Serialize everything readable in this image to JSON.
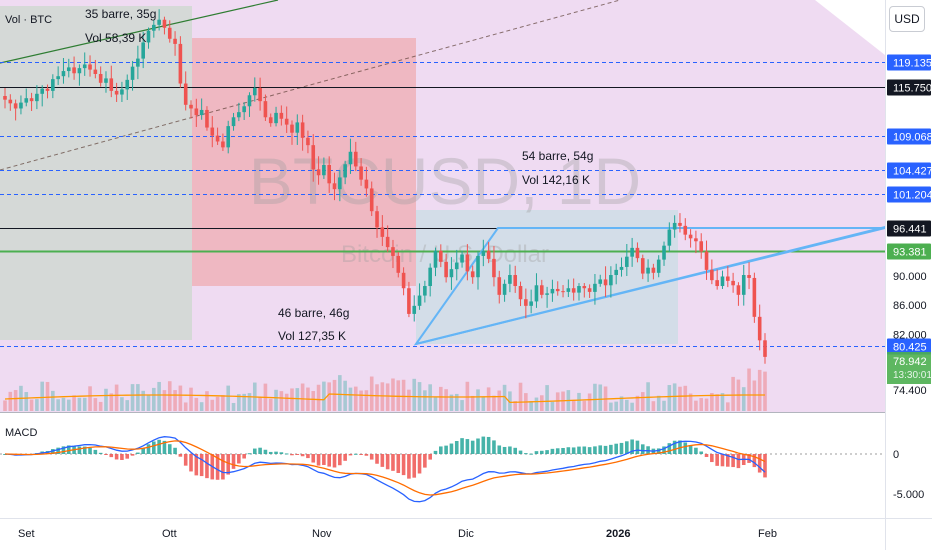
{
  "symbol": {
    "watermark": "BTCUSD, 1D",
    "subtitle": "Bitcoin / U.S. Dollar"
  },
  "indicators": {
    "volume_label": "Vol · BTC",
    "macd_label": "MACD"
  },
  "currency_button": "USD",
  "annotations": {
    "range1_bars": "35 barre, 35g",
    "range1_vol": "Vol 58,39 K",
    "range2_bars": "46 barre, 46g",
    "range2_vol": "Vol 127,35 K",
    "range3_bars": "54 barre, 54g",
    "range3_vol": "Vol 142,16 K"
  },
  "price_axis": {
    "ticks": [
      {
        "value": 90000,
        "text": "90.000"
      },
      {
        "value": 86000,
        "text": "86.000"
      },
      {
        "value": 82000,
        "text": "82.000"
      },
      {
        "value": 74400,
        "text": "74.400"
      }
    ],
    "levels": [
      {
        "value": 119135,
        "text": "119.135",
        "kind": "dashed"
      },
      {
        "value": 115750,
        "text": "115.750",
        "kind": "black"
      },
      {
        "value": 109068,
        "text": "109.068",
        "kind": "dashed"
      },
      {
        "value": 104427,
        "text": "104.427",
        "kind": "dashed"
      },
      {
        "value": 101204,
        "text": "101.204",
        "kind": "dashed"
      },
      {
        "value": 96441,
        "text": "96.441",
        "kind": "black"
      },
      {
        "value": 93381,
        "text": "93.381",
        "kind": "green"
      },
      {
        "value": 80425,
        "text": "80.425",
        "kind": "dashed"
      }
    ],
    "last_price": "78.942",
    "countdown": "13:30:01"
  },
  "macd_axis": [
    {
      "value": 0,
      "text": "0"
    },
    {
      "value": -5000,
      "text": "-5.000"
    }
  ],
  "time_axis": [
    {
      "text": "Set",
      "bold": false
    },
    {
      "text": "Ott",
      "bold": false
    },
    {
      "text": "Nov",
      "bold": false
    },
    {
      "text": "Dic",
      "bold": false
    },
    {
      "text": "2026",
      "bold": true
    },
    {
      "text": "Feb",
      "bold": false
    }
  ],
  "colors": {
    "up": "#26a69a",
    "down": "#ef5350",
    "level_blue": "#2962ff",
    "level_green": "#4caf50",
    "macd_line": "#2962ff",
    "signal_line": "#ff6d00",
    "range_green": "#a5d6a7",
    "range_red": "#ef9a9a",
    "range_blue": "#90caf9",
    "pink_bg": "#e1bee7"
  },
  "chart_data": {
    "type": "candlestick",
    "closes": [
      114000,
      113500,
      112800,
      113600,
      114200,
      113800,
      114800,
      115500,
      115200,
      116800,
      117200,
      117900,
      118400,
      117600,
      118300,
      118800,
      118100,
      117500,
      116300,
      116900,
      115200,
      114700,
      115400,
      116700,
      118500,
      119600,
      121800,
      123400,
      124200,
      124900,
      123800,
      122300,
      121600,
      116200,
      113300,
      112800,
      111900,
      112600,
      110200,
      109100,
      108300,
      107500,
      110400,
      111600,
      112300,
      113100,
      114600,
      115600,
      113800,
      111600,
      110800,
      112200,
      111400,
      110600,
      109500,
      110900,
      108800,
      107800,
      104500,
      103700,
      105100,
      102600,
      101800,
      103400,
      105200,
      106900,
      104900,
      103100,
      101900,
      98800,
      96600,
      95300,
      93900,
      92700,
      90400,
      88300,
      84800,
      85900,
      87300,
      88600,
      91100,
      93400,
      91900,
      89800,
      90900,
      91800,
      92900,
      90600,
      89800,
      92700,
      93400,
      92300,
      89800,
      87400,
      88900,
      90100,
      88600,
      86800,
      85900,
      86500,
      88700,
      87400,
      87600,
      88200,
      87900,
      87800,
      88300,
      87700,
      88600,
      88300,
      87800,
      88900,
      89500,
      88700,
      90100,
      90800,
      91200,
      92600,
      93800,
      92400,
      90300,
      91100,
      90400,
      92200,
      94100,
      96300,
      97200,
      96800,
      95600,
      95100,
      94700,
      93300,
      90800,
      89400,
      88600,
      89900,
      89300,
      88700,
      87400,
      90100,
      89700,
      84400,
      81200,
      78942
    ],
    "volume_scale_hint": "relative",
    "price_range": [
      74000,
      125500
    ]
  }
}
